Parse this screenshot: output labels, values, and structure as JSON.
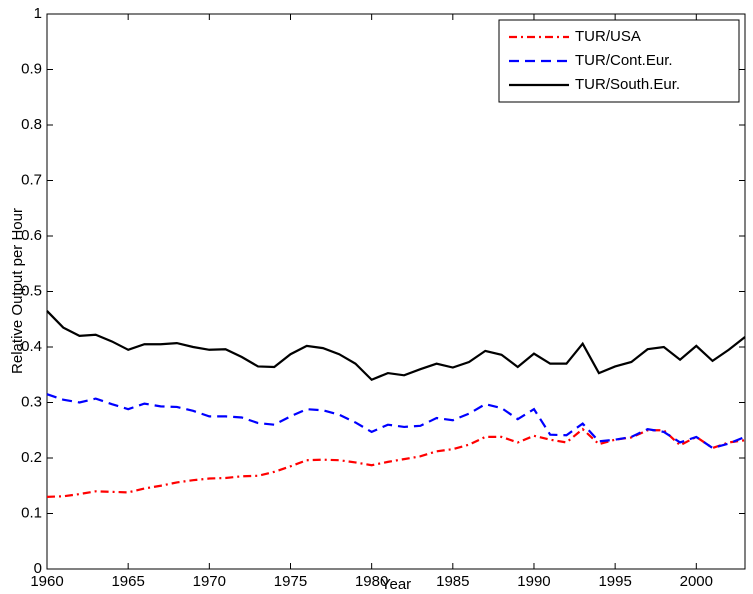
{
  "chart_data": {
    "type": "line",
    "xlabel": "Year",
    "ylabel": "Relative Output per Hour",
    "x": [
      1960,
      1961,
      1962,
      1963,
      1964,
      1965,
      1966,
      1967,
      1968,
      1969,
      1970,
      1971,
      1972,
      1973,
      1974,
      1975,
      1976,
      1977,
      1978,
      1979,
      1980,
      1981,
      1982,
      1983,
      1984,
      1985,
      1986,
      1987,
      1988,
      1989,
      1990,
      1991,
      1992,
      1993,
      1994,
      1995,
      1996,
      1997,
      1998,
      1999,
      2000,
      2001,
      2002,
      2003
    ],
    "series": [
      {
        "name": "TUR/USA",
        "color": "#ff0000",
        "dash": "dashdot",
        "values": [
          0.13,
          0.131,
          0.135,
          0.14,
          0.139,
          0.138,
          0.145,
          0.15,
          0.156,
          0.16,
          0.163,
          0.164,
          0.167,
          0.168,
          0.175,
          0.185,
          0.196,
          0.197,
          0.196,
          0.192,
          0.187,
          0.193,
          0.198,
          0.203,
          0.212,
          0.216,
          0.224,
          0.238,
          0.238,
          0.228,
          0.24,
          0.233,
          0.228,
          0.252,
          0.225,
          0.233,
          0.237,
          0.25,
          0.25,
          0.223,
          0.238,
          0.218,
          0.228,
          0.232
        ]
      },
      {
        "name": "TUR/Cont.Eur.",
        "color": "#0000ff",
        "dash": "dashed",
        "values": [
          0.315,
          0.305,
          0.3,
          0.307,
          0.297,
          0.288,
          0.298,
          0.293,
          0.292,
          0.285,
          0.275,
          0.275,
          0.273,
          0.263,
          0.26,
          0.275,
          0.288,
          0.286,
          0.278,
          0.264,
          0.247,
          0.26,
          0.256,
          0.258,
          0.272,
          0.268,
          0.28,
          0.297,
          0.29,
          0.27,
          0.288,
          0.242,
          0.241,
          0.262,
          0.23,
          0.233,
          0.238,
          0.252,
          0.247,
          0.228,
          0.238,
          0.218,
          0.226,
          0.238
        ]
      },
      {
        "name": "TUR/South.Eur.",
        "color": "#000000",
        "dash": "solid",
        "values": [
          0.465,
          0.435,
          0.42,
          0.422,
          0.41,
          0.395,
          0.405,
          0.405,
          0.407,
          0.4,
          0.395,
          0.396,
          0.382,
          0.365,
          0.364,
          0.387,
          0.402,
          0.398,
          0.387,
          0.37,
          0.341,
          0.353,
          0.349,
          0.36,
          0.37,
          0.363,
          0.373,
          0.393,
          0.386,
          0.364,
          0.388,
          0.37,
          0.37,
          0.406,
          0.353,
          0.365,
          0.373,
          0.396,
          0.4,
          0.377,
          0.402,
          0.375,
          0.395,
          0.418
        ]
      }
    ],
    "xlim": [
      1960,
      2003
    ],
    "xticks": [
      1960,
      1965,
      1970,
      1975,
      1980,
      1985,
      1990,
      1995,
      2000
    ],
    "ylim": [
      0,
      1
    ],
    "yticks": [
      0,
      0.1,
      0.2,
      0.3,
      0.4,
      0.5,
      0.6,
      0.7,
      0.8,
      0.9,
      1
    ],
    "grid": false,
    "legend": "northeast"
  }
}
